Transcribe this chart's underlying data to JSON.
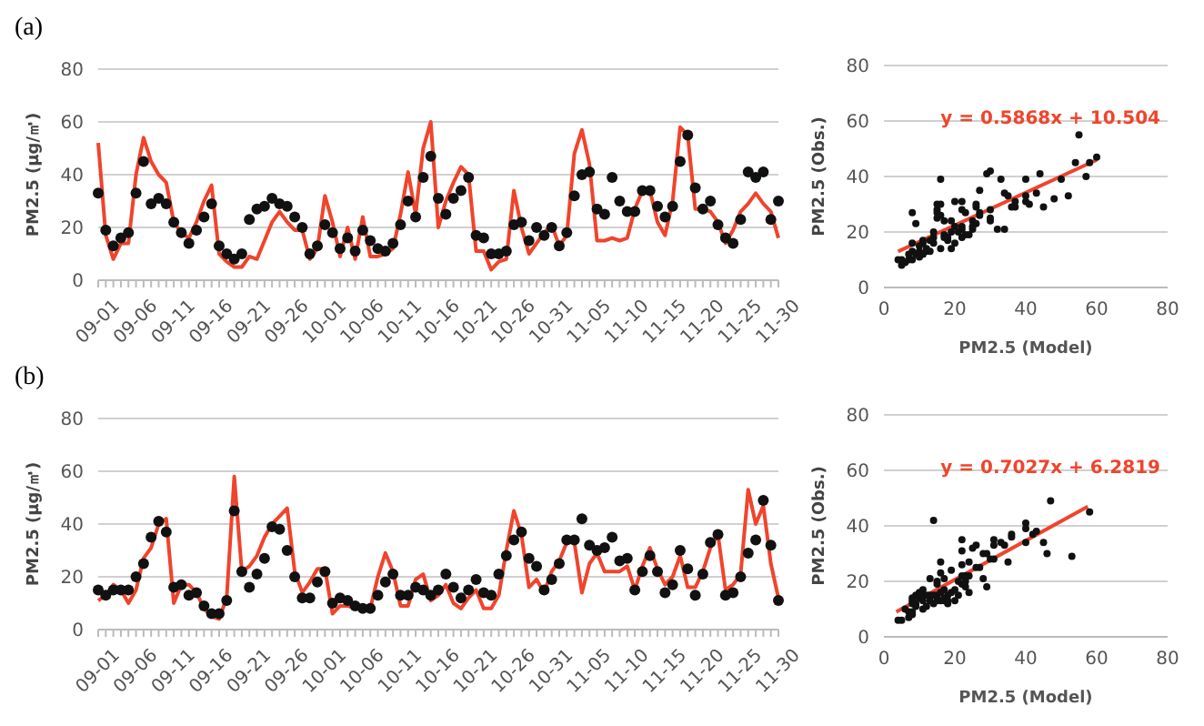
{
  "chart_data": [
    {
      "type": "line",
      "title": "(a)",
      "ylabel": "PM2.5 (μg/㎥)",
      "categories": [
        "09-01",
        null,
        null,
        null,
        null,
        "09-06",
        null,
        null,
        null,
        null,
        "09-11",
        null,
        null,
        null,
        null,
        "09-16",
        null,
        null,
        null,
        null,
        "09-21",
        null,
        null,
        null,
        null,
        "09-26",
        null,
        null,
        null,
        null,
        "10-01",
        null,
        null,
        null,
        null,
        "10-06",
        null,
        null,
        null,
        null,
        "10-11",
        null,
        null,
        null,
        null,
        "10-16",
        null,
        null,
        null,
        null,
        "10-21",
        null,
        null,
        null,
        null,
        "10-26",
        null,
        null,
        null,
        null,
        "10-31",
        null,
        null,
        null,
        null,
        "11-05",
        null,
        null,
        null,
        null,
        "11-10",
        null,
        null,
        null,
        null,
        "11-15",
        null,
        null,
        null,
        null,
        "11-20",
        null,
        null,
        null,
        null,
        "11-25",
        null,
        null,
        null,
        null,
        "11-30"
      ],
      "ylim": [
        0,
        80
      ],
      "yticks": [
        0,
        20,
        40,
        60,
        80
      ],
      "grid": "y",
      "series": [
        {
          "color": "#f0442c",
          "values": [
            52,
            17,
            8,
            14,
            14,
            40,
            54,
            45,
            40,
            37,
            22,
            18,
            16,
            22,
            30,
            36,
            10,
            7,
            5,
            5,
            9,
            8,
            15,
            22,
            26,
            22,
            19,
            19,
            8,
            12,
            32,
            22,
            9,
            20,
            8,
            24,
            9,
            9,
            10,
            12,
            25,
            41,
            25,
            50,
            60,
            20,
            30,
            37,
            43,
            40,
            11,
            11,
            4,
            7,
            8,
            34,
            20,
            10,
            14,
            18,
            21,
            13,
            17,
            48,
            57,
            44,
            15,
            15,
            16,
            15,
            16,
            27,
            34,
            34,
            22,
            17,
            30,
            58,
            55,
            27,
            27,
            26,
            22,
            14,
            19,
            26,
            29,
            33,
            29,
            26,
            16
          ]
        },
        {
          "type": "scatter",
          "color": "#111111",
          "values": [
            33,
            19,
            13,
            16,
            18,
            33,
            45,
            29,
            31,
            29,
            22,
            18,
            14,
            19,
            24,
            29,
            13,
            10,
            8,
            10,
            23,
            27,
            28,
            31,
            29,
            28,
            24,
            20,
            10,
            13,
            21,
            18,
            12,
            16,
            11,
            19,
            15,
            12,
            11,
            14,
            21,
            30,
            24,
            39,
            47,
            31,
            25,
            31,
            34,
            39,
            17,
            16,
            10,
            10,
            11,
            21,
            22,
            15,
            20,
            17,
            20,
            13,
            18,
            32,
            40,
            41,
            27,
            25,
            39,
            30,
            26,
            26,
            34,
            34,
            28,
            24,
            28,
            45,
            55,
            35,
            27,
            30,
            21,
            16,
            14,
            23,
            41,
            39,
            41,
            23,
            30
          ]
        }
      ]
    },
    {
      "type": "scatter",
      "xlabel": "PM2.5 (Model)",
      "ylabel": "PM2.5 (Obs.)",
      "xlim": [
        0,
        80
      ],
      "xticks": [
        0,
        20,
        40,
        60,
        80
      ],
      "ylim": [
        0,
        80
      ],
      "yticks": [
        0,
        20,
        40,
        60,
        80
      ],
      "grid": "y",
      "annotations": [
        "y = 0.5868x + 10.504"
      ],
      "series": [
        {
          "color": "#111111",
          "x": [
            52,
            17,
            8,
            14,
            14,
            40,
            54,
            45,
            40,
            37,
            22,
            18,
            16,
            23,
            30,
            36,
            10,
            7,
            5,
            5,
            9,
            8,
            15,
            22,
            26,
            22,
            19,
            19,
            8,
            12,
            32,
            22,
            9,
            20,
            null,
            24,
            8,
            11,
            10,
            12,
            25,
            41,
            25,
            50,
            60,
            20,
            30,
            37,
            43,
            40,
            11,
            11,
            4,
            6,
            7,
            34,
            20,
            10,
            14,
            18,
            21,
            13,
            17,
            48,
            57,
            44,
            15,
            15,
            16,
            15,
            16,
            27,
            34,
            35,
            23,
            17,
            30,
            58,
            55,
            27,
            27,
            26,
            22,
            13,
            19,
            26,
            29,
            33,
            30,
            25,
            16
          ],
          "values": [
            33,
            19,
            13,
            16,
            18,
            33,
            45,
            29,
            31,
            29,
            22,
            18,
            14,
            19,
            24,
            29,
            13,
            10,
            8,
            10,
            23,
            27,
            28,
            31,
            29,
            28,
            24,
            20,
            10,
            13,
            21,
            18,
            12,
            16,
            null,
            19,
            16,
            12,
            11,
            14,
            21,
            30,
            24,
            39,
            47,
            31,
            25,
            31,
            34,
            39,
            17,
            16,
            10,
            9,
            12,
            21,
            22,
            15,
            20,
            17,
            20,
            13,
            18,
            32,
            40,
            41,
            27,
            25,
            39,
            30,
            26,
            26,
            34,
            33,
            27,
            24,
            28,
            45,
            55,
            35,
            27,
            30,
            21,
            17,
            14,
            23,
            41,
            39,
            42,
            22,
            30
          ]
        },
        {
          "type": "line",
          "color": "#f0442c",
          "x": [
            4,
            60
          ],
          "values": [
            13,
            46
          ]
        }
      ]
    },
    {
      "type": "line",
      "title": "(b)",
      "ylabel": "PM2.5 (μg/㎥)",
      "categories": [
        "09-01",
        null,
        null,
        null,
        null,
        "09-06",
        null,
        null,
        null,
        null,
        "09-11",
        null,
        null,
        null,
        null,
        "09-16",
        null,
        null,
        null,
        null,
        "09-21",
        null,
        null,
        null,
        null,
        "09-26",
        null,
        null,
        null,
        null,
        "10-01",
        null,
        null,
        null,
        null,
        "10-06",
        null,
        null,
        null,
        null,
        "10-11",
        null,
        null,
        null,
        null,
        "10-16",
        null,
        null,
        null,
        null,
        "10-21",
        null,
        null,
        null,
        null,
        "10-26",
        null,
        null,
        null,
        null,
        "10-31",
        null,
        null,
        null,
        null,
        "11-05",
        null,
        null,
        null,
        null,
        "11-10",
        null,
        null,
        null,
        null,
        "11-15",
        null,
        null,
        null,
        null,
        "11-20",
        null,
        null,
        null,
        null,
        "11-25",
        null,
        null,
        null,
        null,
        "11-30"
      ],
      "ylim": [
        0,
        80
      ],
      "yticks": [
        0,
        20,
        40,
        60,
        80
      ],
      "grid": "y",
      "series": [
        {
          "color": "#f0442c",
          "values": [
            11,
            13,
            17,
            15,
            10,
            15,
            27,
            31,
            40,
            42,
            10,
            17,
            17,
            14,
            8,
            5,
            4,
            12,
            58,
            22,
            24,
            28,
            35,
            40,
            43,
            46,
            22,
            14,
            18,
            23,
            23,
            6,
            9,
            9,
            8,
            8,
            8,
            20,
            29,
            22,
            9,
            9,
            19,
            21,
            11,
            13,
            17,
            10,
            8,
            12,
            15,
            8,
            8,
            13,
            30,
            45,
            36,
            16,
            19,
            14,
            22,
            26,
            33,
            33,
            14,
            25,
            29,
            22,
            22,
            22,
            24,
            15,
            24,
            31,
            23,
            17,
            20,
            28,
            16,
            16,
            22,
            31,
            36,
            15,
            17,
            21,
            53,
            40,
            47,
            25,
            12
          ]
        },
        {
          "type": "scatter",
          "color": "#111111",
          "values": [
            15,
            13,
            15,
            15,
            15,
            20,
            25,
            35,
            41,
            37,
            16,
            17,
            13,
            14,
            9,
            6,
            6,
            11,
            45,
            22,
            16,
            21,
            27,
            39,
            38,
            30,
            20,
            12,
            12,
            18,
            22,
            10,
            12,
            11,
            9,
            8,
            8,
            13,
            18,
            21,
            13,
            13,
            16,
            15,
            13,
            15,
            21,
            16,
            12,
            15,
            19,
            14,
            13,
            21,
            28,
            34,
            37,
            27,
            24,
            15,
            19,
            25,
            34,
            34,
            42,
            32,
            30,
            31,
            35,
            26,
            27,
            15,
            22,
            28,
            22,
            14,
            17,
            30,
            23,
            13,
            21,
            33,
            36,
            13,
            14,
            20,
            29,
            34,
            49,
            32,
            11
          ]
        }
      ]
    },
    {
      "type": "scatter",
      "xlabel": "PM2.5 (Model)",
      "ylabel": "PM2.5 (Obs.)",
      "xlim": [
        0,
        80
      ],
      "xticks": [
        0,
        20,
        40,
        60,
        80
      ],
      "ylim": [
        0,
        80
      ],
      "yticks": [
        0,
        20,
        40,
        60,
        80
      ],
      "grid": "y",
      "annotations": [
        "y = 0.7027x + 6.2819"
      ],
      "series": [
        {
          "color": "#111111",
          "x": [
            11,
            13,
            18,
            15,
            9,
            15,
            27,
            31,
            40,
            42,
            10,
            17,
            17,
            null,
            8,
            5,
            4,
            12,
            58,
            22,
            24,
            28,
            35,
            40,
            43,
            46,
            null,
            14,
            18,
            23,
            23,
            6,
            9,
            9,
            7,
            8,
            7,
            20,
            29,
            null,
            null,
            10,
            19,
            21,
            11,
            13,
            17,
            11,
            8,
            12,
            15,
            8,
            8,
            13,
            30,
            45,
            36,
            16,
            19,
            14,
            22,
            26,
            33,
            34,
            14,
            25,
            29,
            22,
            22,
            22,
            24,
            16,
            24,
            31,
            23,
            17,
            20,
            28,
            16,
            16,
            23,
            31,
            36,
            15,
            18,
            21,
            53,
            40,
            47,
            26,
            11
          ],
          "values": [
            15,
            13,
            15,
            15,
            15,
            20,
            25,
            35,
            41,
            37,
            16,
            17,
            13,
            null,
            9,
            6,
            6,
            11,
            45,
            22,
            16,
            21,
            27,
            39,
            38,
            30,
            null,
            12,
            12,
            18,
            22,
            10,
            12,
            11,
            9,
            8,
            7,
            13,
            18,
            null,
            null,
            14,
            16,
            15,
            13,
            15,
            21,
            17,
            12,
            15,
            19,
            14,
            13,
            21,
            28,
            34,
            37,
            27,
            24,
            15,
            19,
            25,
            34,
            33,
            42,
            32,
            30,
            31,
            35,
            26,
            27,
            16,
            22,
            28,
            22,
            14,
            17,
            30,
            23,
            13,
            20,
            33,
            36,
            13,
            13,
            20,
            29,
            34,
            49,
            33,
            10
          ]
        },
        {
          "type": "line",
          "color": "#f0442c",
          "x": [
            3.5,
            57.5
          ],
          "values": [
            9,
            47
          ]
        }
      ]
    }
  ]
}
